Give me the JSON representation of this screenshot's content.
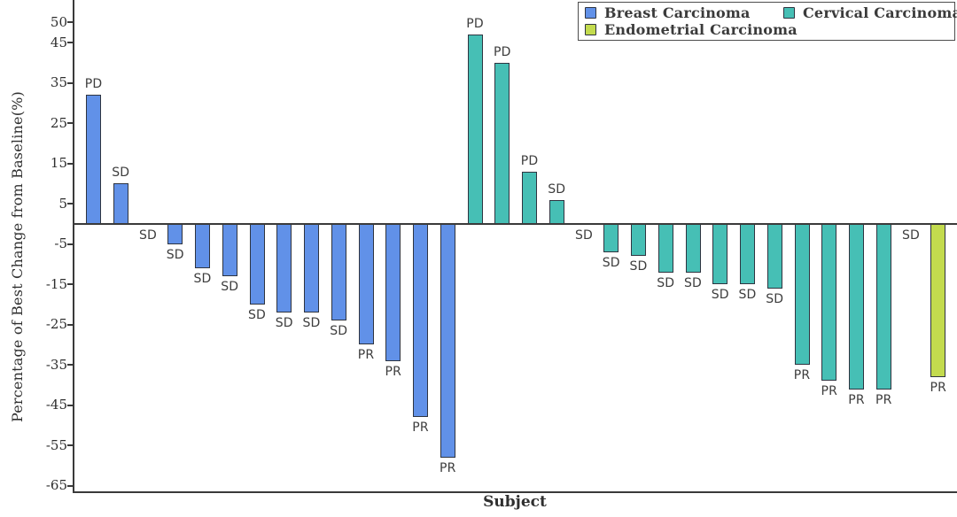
{
  "chart_data": {
    "type": "bar",
    "subtype": "waterfall",
    "title": "",
    "xlabel": "Subject",
    "ylabel": "Percentage of Best Change from Baseline(%)",
    "ylim": [
      -66.6,
      55.6
    ],
    "yticks": [
      50,
      45,
      35,
      25,
      15,
      5,
      -5,
      -15,
      -25,
      -35,
      -45,
      -55,
      -65
    ],
    "grid": false,
    "legend_position": "top-right",
    "bar_label_meaning": "best overall response: PD / SD / PR",
    "series": [
      {
        "name": "Breast Carcinoma",
        "color": "#6191E8",
        "values": [
          32,
          10,
          0,
          -5,
          -11,
          -13,
          -20,
          -22,
          -22,
          -24,
          -30,
          -34,
          -48,
          -58
        ],
        "labels": [
          "PD",
          "SD",
          "SD",
          "SD",
          "SD",
          "SD",
          "SD",
          "SD",
          "SD",
          "SD",
          "PR",
          "PR",
          "PR",
          "PR"
        ]
      },
      {
        "name": "Cervical Carcinoma",
        "color": "#46BFB5",
        "values": [
          47,
          40,
          13,
          6,
          0,
          -7,
          -8,
          -12,
          -12,
          -15,
          -15,
          -16,
          -35,
          -39,
          -41,
          -41
        ],
        "labels": [
          "PD",
          "PD",
          "PD",
          "SD",
          "SD",
          "SD",
          "SD",
          "SD",
          "SD",
          "SD",
          "SD",
          "SD",
          "PR",
          "PR",
          "PR",
          "PR"
        ]
      },
      {
        "name": "Endometrial Carcinoma",
        "color": "#C3DB4E",
        "values": [
          0,
          -38
        ],
        "labels": [
          "SD",
          "PR"
        ]
      }
    ]
  }
}
